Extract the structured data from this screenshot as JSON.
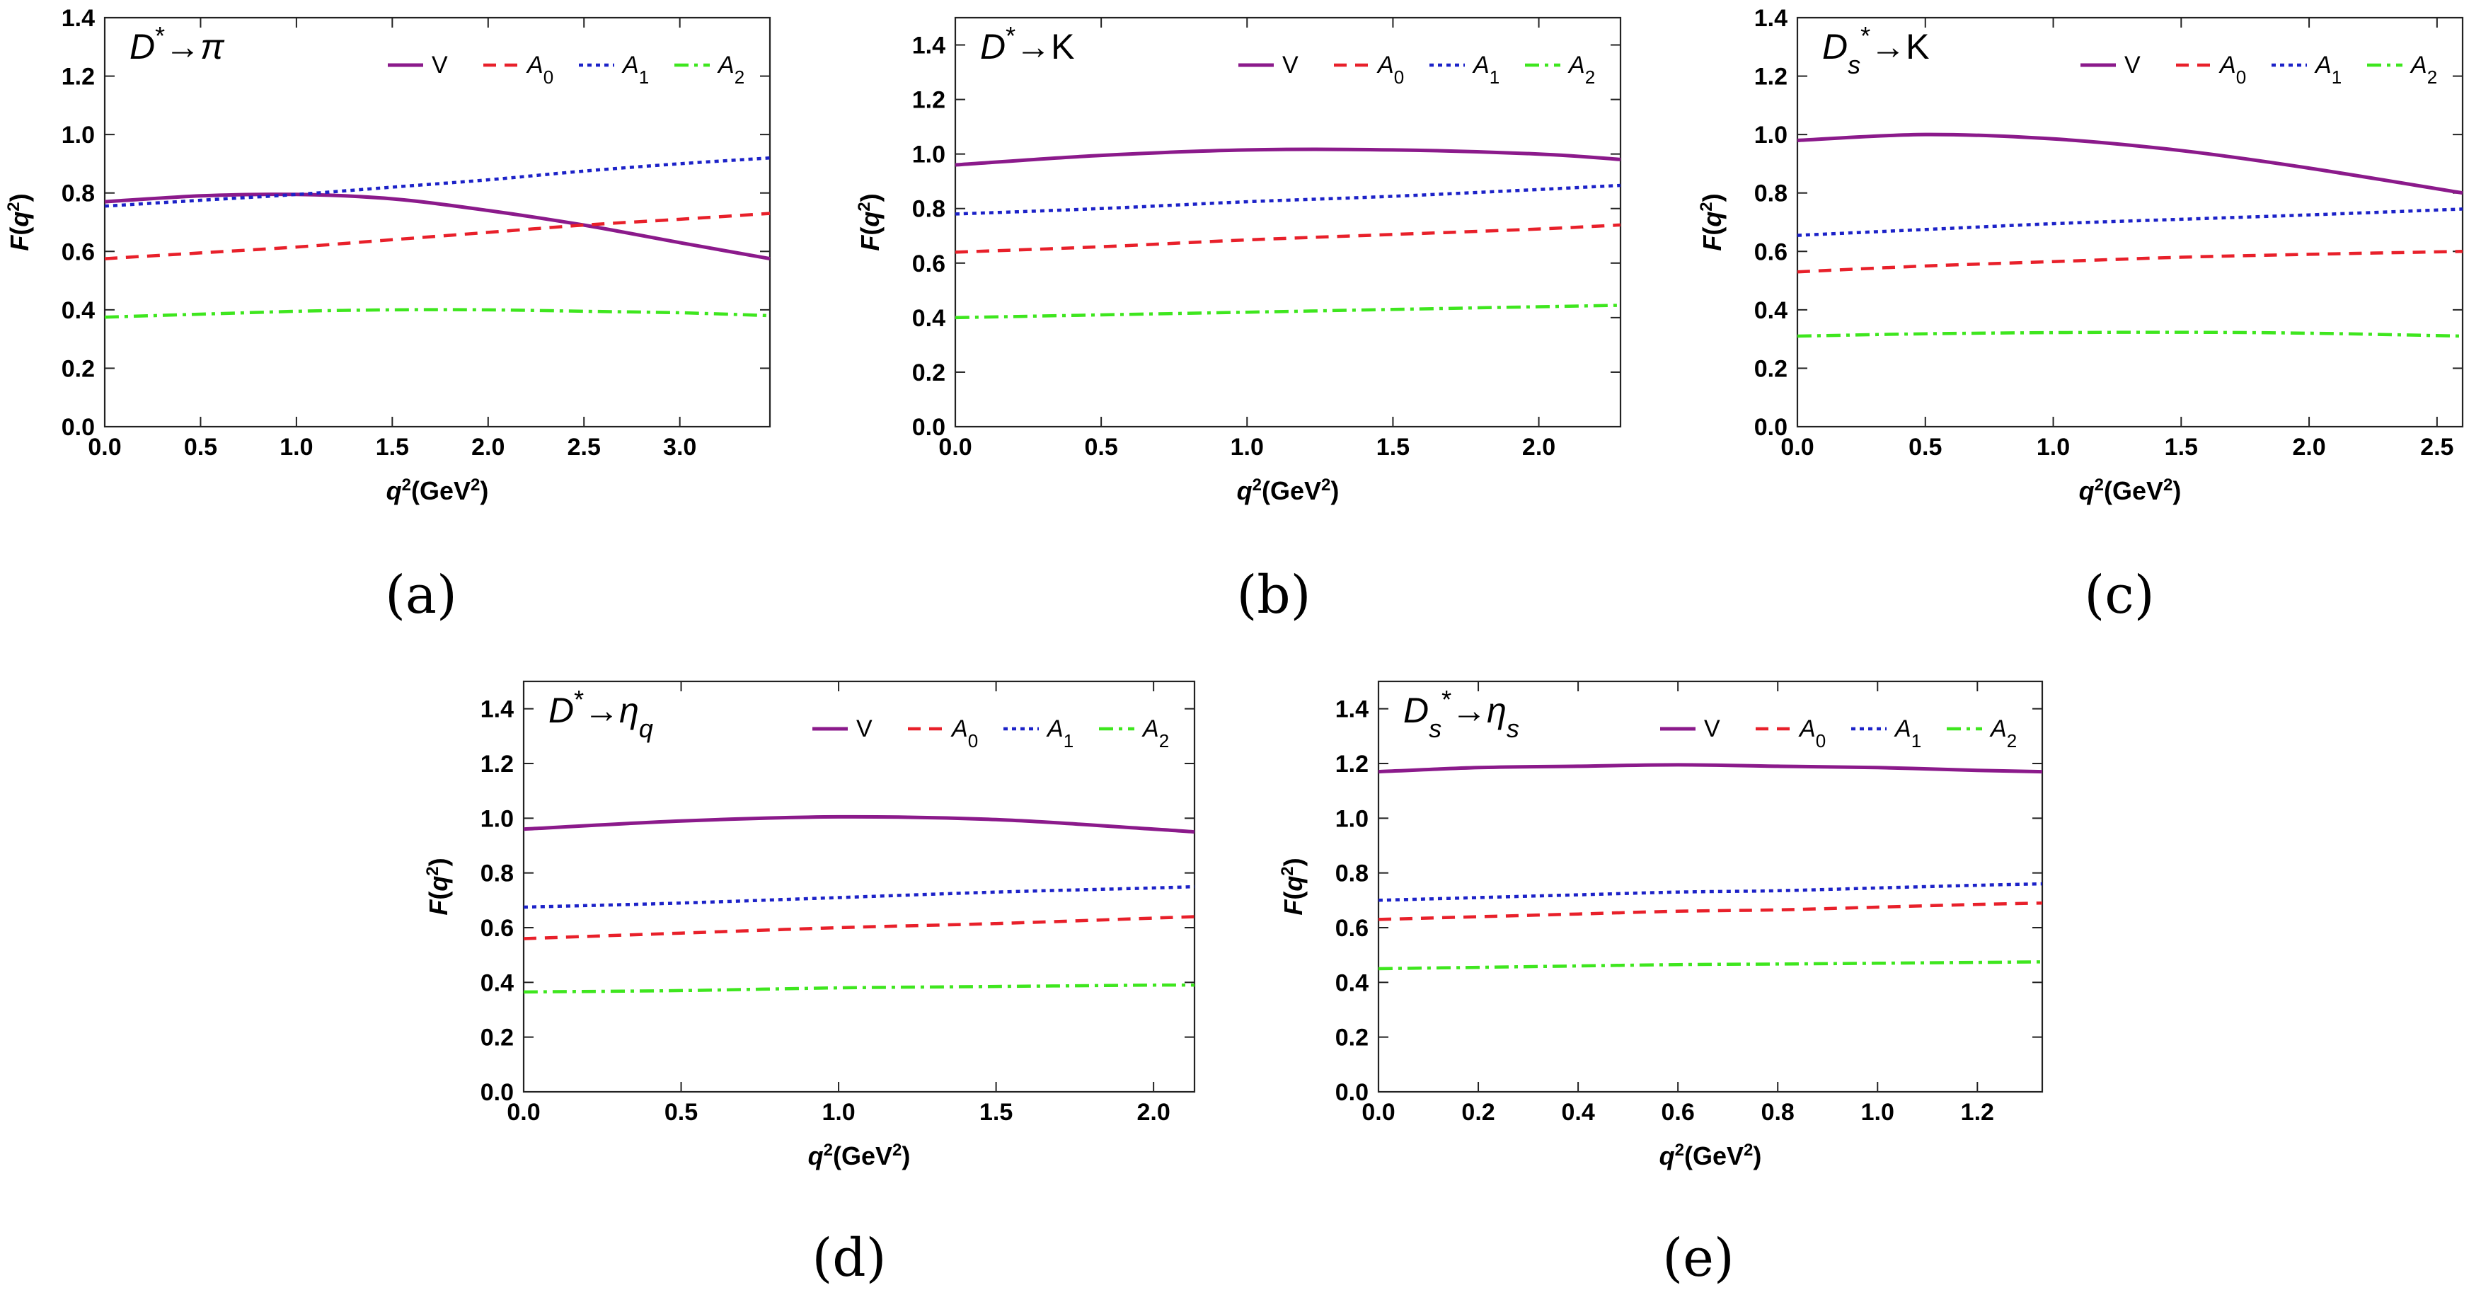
{
  "colors": {
    "V": "#8b1a8b",
    "A0": "#e8202a",
    "A1": "#1c22c8",
    "A2": "#3ee61e"
  },
  "chart_data": [
    {
      "type": "line",
      "title": "D*→π",
      "caption": "(a)",
      "xlabel": "q²(GeV²)",
      "ylabel": "F(q²)",
      "xlim": [
        0,
        3.47
      ],
      "ylim": [
        0,
        1.4
      ],
      "xticks": [
        "0.0",
        "0.5",
        "1.0",
        "1.5",
        "2.0",
        "2.5",
        "3.0"
      ],
      "yticks": [
        "0.0",
        "0.2",
        "0.4",
        "0.6",
        "0.8",
        "1.0",
        "1.2",
        "1.4"
      ],
      "legend": [
        "V",
        "A0",
        "A1",
        "A2"
      ],
      "x": [
        0,
        0.5,
        1.0,
        1.5,
        2.0,
        2.5,
        3.0,
        3.47
      ],
      "series": [
        {
          "name": "V",
          "values": [
            0.77,
            0.79,
            0.795,
            0.78,
            0.74,
            0.69,
            0.63,
            0.575
          ]
        },
        {
          "name": "A0",
          "values": [
            0.575,
            0.595,
            0.615,
            0.64,
            0.665,
            0.69,
            0.71,
            0.73
          ]
        },
        {
          "name": "A1",
          "values": [
            0.755,
            0.775,
            0.795,
            0.82,
            0.845,
            0.875,
            0.9,
            0.92
          ]
        },
        {
          "name": "A2",
          "values": [
            0.375,
            0.385,
            0.395,
            0.4,
            0.4,
            0.395,
            0.39,
            0.38
          ]
        }
      ]
    },
    {
      "type": "line",
      "title": "D*→K",
      "caption": "(b)",
      "xlabel": "q²(GeV²)",
      "ylabel": "F(q²)",
      "xlim": [
        0,
        2.28
      ],
      "ylim": [
        0,
        1.5
      ],
      "xticks": [
        "0.0",
        "0.5",
        "1.0",
        "1.5",
        "2.0"
      ],
      "yticks": [
        "0.0",
        "0.2",
        "0.4",
        "0.6",
        "0.8",
        "1.0",
        "1.2",
        "1.4"
      ],
      "legend": [
        "V",
        "A0",
        "A1",
        "A2"
      ],
      "x": [
        0,
        0.5,
        1.0,
        1.5,
        2.0,
        2.28
      ],
      "series": [
        {
          "name": "V",
          "values": [
            0.96,
            0.995,
            1.015,
            1.015,
            1.0,
            0.98
          ]
        },
        {
          "name": "A0",
          "values": [
            0.64,
            0.66,
            0.685,
            0.705,
            0.725,
            0.74
          ]
        },
        {
          "name": "A1",
          "values": [
            0.78,
            0.8,
            0.825,
            0.845,
            0.87,
            0.885
          ]
        },
        {
          "name": "A2",
          "values": [
            0.4,
            0.41,
            0.42,
            0.43,
            0.44,
            0.445
          ]
        }
      ]
    },
    {
      "type": "line",
      "title": "Ds*→K",
      "caption": "(c)",
      "xlabel": "q²(GeV²)",
      "ylabel": "F(q²)",
      "xlim": [
        0,
        2.6
      ],
      "ylim": [
        0,
        1.4
      ],
      "xticks": [
        "0.0",
        "0.5",
        "1.0",
        "1.5",
        "2.0",
        "2.5"
      ],
      "yticks": [
        "0.0",
        "0.2",
        "0.4",
        "0.6",
        "0.8",
        "1.0",
        "1.2",
        "1.4"
      ],
      "legend": [
        "V",
        "A0",
        "A1",
        "A2"
      ],
      "x": [
        0,
        0.5,
        1.0,
        1.5,
        2.0,
        2.6
      ],
      "series": [
        {
          "name": "V",
          "values": [
            0.98,
            1.0,
            0.985,
            0.945,
            0.885,
            0.8
          ]
        },
        {
          "name": "A0",
          "values": [
            0.53,
            0.55,
            0.565,
            0.58,
            0.59,
            0.6
          ]
        },
        {
          "name": "A1",
          "values": [
            0.655,
            0.675,
            0.695,
            0.71,
            0.725,
            0.745
          ]
        },
        {
          "name": "A2",
          "values": [
            0.31,
            0.318,
            0.322,
            0.323,
            0.32,
            0.31
          ]
        }
      ]
    },
    {
      "type": "line",
      "title": "D*→ηq",
      "caption": "(d)",
      "xlabel": "q²(GeV²)",
      "ylabel": "F(q²)",
      "xlim": [
        0,
        2.13
      ],
      "ylim": [
        0,
        1.5
      ],
      "xticks": [
        "0.0",
        "0.5",
        "1.0",
        "1.5",
        "2.0"
      ],
      "yticks": [
        "0.0",
        "0.2",
        "0.4",
        "0.6",
        "0.8",
        "1.0",
        "1.2",
        "1.4"
      ],
      "legend": [
        "V",
        "A0",
        "A1",
        "A2"
      ],
      "x": [
        0,
        0.5,
        1.0,
        1.5,
        2.0,
        2.13
      ],
      "series": [
        {
          "name": "V",
          "values": [
            0.96,
            0.99,
            1.005,
            0.995,
            0.96,
            0.95
          ]
        },
        {
          "name": "A0",
          "values": [
            0.56,
            0.58,
            0.6,
            0.615,
            0.635,
            0.64
          ]
        },
        {
          "name": "A1",
          "values": [
            0.675,
            0.69,
            0.71,
            0.73,
            0.745,
            0.75
          ]
        },
        {
          "name": "A2",
          "values": [
            0.365,
            0.37,
            0.38,
            0.385,
            0.39,
            0.39
          ]
        }
      ]
    },
    {
      "type": "line",
      "title": "Ds*→ηs",
      "caption": "(e)",
      "xlabel": "q²(GeV²)",
      "ylabel": "F(q²)",
      "xlim": [
        0,
        1.33
      ],
      "ylim": [
        0,
        1.5
      ],
      "xticks": [
        "0.0",
        "0.2",
        "0.4",
        "0.6",
        "0.8",
        "1.0",
        "1.2"
      ],
      "yticks": [
        "0.0",
        "0.2",
        "0.4",
        "0.6",
        "0.8",
        "1.0",
        "1.2",
        "1.4"
      ],
      "legend": [
        "V",
        "A0",
        "A1",
        "A2"
      ],
      "x": [
        0,
        0.2,
        0.4,
        0.6,
        0.8,
        1.0,
        1.2,
        1.33
      ],
      "series": [
        {
          "name": "V",
          "values": [
            1.17,
            1.185,
            1.19,
            1.195,
            1.19,
            1.185,
            1.175,
            1.17
          ]
        },
        {
          "name": "A0",
          "values": [
            0.63,
            0.64,
            0.65,
            0.66,
            0.665,
            0.675,
            0.685,
            0.69
          ]
        },
        {
          "name": "A1",
          "values": [
            0.7,
            0.71,
            0.72,
            0.73,
            0.735,
            0.745,
            0.755,
            0.76
          ]
        },
        {
          "name": "A2",
          "values": [
            0.45,
            0.455,
            0.46,
            0.465,
            0.467,
            0.47,
            0.473,
            0.475
          ]
        }
      ]
    }
  ]
}
